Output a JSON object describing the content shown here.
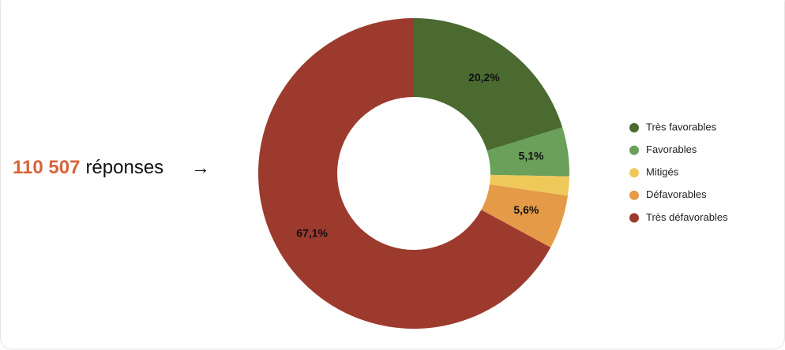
{
  "chart_data": {
    "type": "donut",
    "categories": [
      "Très favorables",
      "Favorables",
      "Mitigés",
      "Défavorables",
      "Très défavorables"
    ],
    "values": [
      20.2,
      5.1,
      2.0,
      5.6,
      67.1
    ],
    "value_labels": [
      "20,2%",
      "5,1%",
      null,
      "5,6%",
      "67,1%"
    ],
    "colors": [
      "#4a6a30",
      "#6aa05a",
      "#efc85a",
      "#e59a48",
      "#9c3a2e"
    ],
    "legend": "right",
    "annotation": {
      "count": "110 507",
      "text": "réponses",
      "arrow": "→"
    }
  }
}
